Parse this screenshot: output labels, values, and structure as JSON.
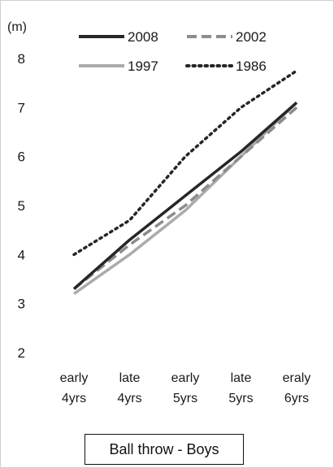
{
  "chart_data": {
    "type": "line",
    "title": "Ball throw - Boys",
    "ylabel": "(m)",
    "xlabel": "",
    "ylim": [
      2,
      8
    ],
    "yticks": [
      2,
      3,
      4,
      5,
      6,
      7,
      8
    ],
    "grid": false,
    "legend_position": "top",
    "categories": [
      [
        "early",
        "4yrs"
      ],
      [
        "late",
        "4yrs"
      ],
      [
        "early",
        "5yrs"
      ],
      [
        "late",
        "5yrs"
      ],
      [
        "eraly",
        "6yrs"
      ]
    ],
    "series": [
      {
        "name": "2008",
        "values": [
          3.3,
          4.3,
          5.2,
          6.1,
          7.1
        ],
        "color": "#262626",
        "style": "solid"
      },
      {
        "name": "2002",
        "values": [
          3.3,
          4.2,
          5.0,
          6.0,
          7.0
        ],
        "color": "#8c8c8c",
        "style": "dashed"
      },
      {
        "name": "1997",
        "values": [
          3.2,
          4.0,
          4.9,
          6.0,
          7.1
        ],
        "color": "#ababab",
        "style": "solid"
      },
      {
        "name": "1986",
        "values": [
          4.0,
          4.7,
          6.0,
          7.0,
          7.75
        ],
        "color": "#262626",
        "style": "dotted"
      }
    ]
  }
}
